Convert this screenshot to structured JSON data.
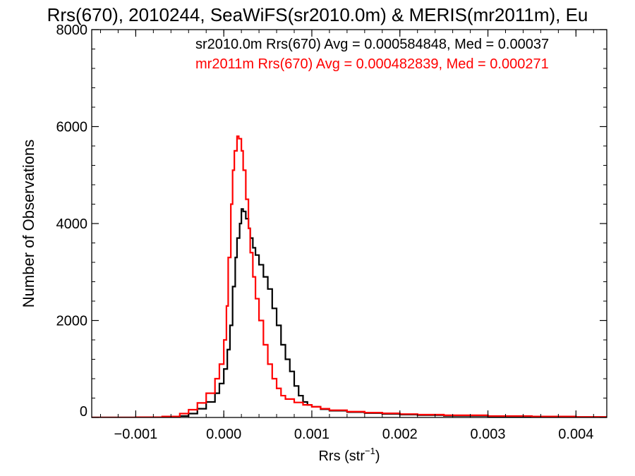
{
  "chart_data": {
    "type": "line",
    "title": "Rrs(670), 2010244, SeaWiFS(sr2010.0m) & MERIS(mr2011m), Eu",
    "xlabel": "Rrs (str",
    "xlabel_sup": "−1",
    "xlabel_close": ")",
    "ylabel": "Number of Observations",
    "xlim": [
      -0.0015,
      0.00435
    ],
    "ylim": [
      0,
      8000
    ],
    "xticks": [
      -0.001,
      0.0,
      0.001,
      0.002,
      0.003,
      0.004
    ],
    "xtick_labels": [
      "−0.001",
      "0.000",
      "0.001",
      "0.002",
      "0.003",
      "0.004"
    ],
    "yticks": [
      0,
      2000,
      4000,
      6000,
      8000
    ],
    "ytick_labels": [
      "0",
      "2000",
      "4000",
      "6000",
      "8000"
    ],
    "grid": false,
    "legend_position": "top-right",
    "series": [
      {
        "name": "sr2010.0m",
        "color": "#000000",
        "annotation": "sr2010.0m Rrs(670) Avg = 0.000584848, Med = 0.00037",
        "points": [
          [
            -0.0015,
            0
          ],
          [
            -0.001,
            0
          ],
          [
            -0.0007,
            5
          ],
          [
            -0.0005,
            30
          ],
          [
            -0.0004,
            80
          ],
          [
            -0.0003,
            180
          ],
          [
            -0.0002,
            320
          ],
          [
            -0.0001,
            500
          ],
          [
            -5e-05,
            700
          ],
          [
            0.0,
            1000
          ],
          [
            4e-05,
            1400
          ],
          [
            7e-05,
            1900
          ],
          [
            0.0001,
            2700
          ],
          [
            0.00013,
            3300
          ],
          [
            0.00015,
            3700
          ],
          [
            0.00018,
            4000
          ],
          [
            0.0002,
            4300
          ],
          [
            0.00022,
            4250
          ],
          [
            0.00025,
            4100
          ],
          [
            0.00028,
            3900
          ],
          [
            0.0003,
            3700
          ],
          [
            0.00033,
            3500
          ],
          [
            0.00036,
            3350
          ],
          [
            0.0004,
            3150
          ],
          [
            0.00045,
            2900
          ],
          [
            0.0005,
            2650
          ],
          [
            0.00055,
            2250
          ],
          [
            0.0006,
            1900
          ],
          [
            0.00065,
            1500
          ],
          [
            0.0007,
            1200
          ],
          [
            0.00075,
            950
          ],
          [
            0.0008,
            650
          ],
          [
            0.00085,
            450
          ],
          [
            0.0009,
            320
          ],
          [
            0.00095,
            260
          ],
          [
            0.001,
            220
          ],
          [
            0.0011,
            170
          ],
          [
            0.0012,
            140
          ],
          [
            0.0014,
            110
          ],
          [
            0.0016,
            90
          ],
          [
            0.0018,
            75
          ],
          [
            0.002,
            60
          ],
          [
            0.0022,
            48
          ],
          [
            0.0025,
            35
          ],
          [
            0.003,
            22
          ],
          [
            0.0035,
            14
          ],
          [
            0.004,
            8
          ],
          [
            0.00435,
            5
          ]
        ]
      },
      {
        "name": "mr2011m",
        "color": "#ff0000",
        "annotation": "mr2011m Rrs(670) Avg = 0.000482839, Med = 0.000271",
        "points": [
          [
            -0.0015,
            0
          ],
          [
            -0.001,
            5
          ],
          [
            -0.0007,
            20
          ],
          [
            -0.0005,
            80
          ],
          [
            -0.0004,
            160
          ],
          [
            -0.0003,
            300
          ],
          [
            -0.0002,
            500
          ],
          [
            -0.0001,
            800
          ],
          [
            -5e-05,
            1100
          ],
          [
            0.0,
            1600
          ],
          [
            3e-05,
            2300
          ],
          [
            5e-05,
            3300
          ],
          [
            8e-05,
            4400
          ],
          [
            0.0001,
            5100
          ],
          [
            0.00012,
            5500
          ],
          [
            0.00015,
            5800
          ],
          [
            0.00017,
            5750
          ],
          [
            0.0002,
            5500
          ],
          [
            0.00022,
            5100
          ],
          [
            0.00025,
            4500
          ],
          [
            0.00028,
            3900
          ],
          [
            0.0003,
            3400
          ],
          [
            0.00033,
            2900
          ],
          [
            0.00036,
            2450
          ],
          [
            0.0004,
            2000
          ],
          [
            0.00045,
            1500
          ],
          [
            0.0005,
            1100
          ],
          [
            0.00055,
            800
          ],
          [
            0.0006,
            600
          ],
          [
            0.00065,
            450
          ],
          [
            0.0007,
            380
          ],
          [
            0.0008,
            310
          ],
          [
            0.0009,
            260
          ],
          [
            0.001,
            220
          ],
          [
            0.0011,
            180
          ],
          [
            0.0012,
            150
          ],
          [
            0.0014,
            120
          ],
          [
            0.0016,
            100
          ],
          [
            0.0018,
            85
          ],
          [
            0.002,
            70
          ],
          [
            0.0022,
            58
          ],
          [
            0.0025,
            45
          ],
          [
            0.003,
            30
          ],
          [
            0.0035,
            20
          ],
          [
            0.004,
            12
          ],
          [
            0.00435,
            8
          ]
        ]
      }
    ]
  }
}
